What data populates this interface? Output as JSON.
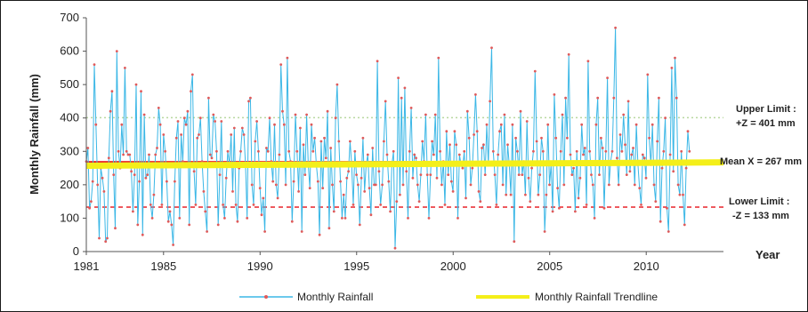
{
  "chart_data": {
    "type": "line",
    "ylabel": "Monthly Rainfall (mm)",
    "xlabel": "Year",
    "ylim": [
      0,
      700
    ],
    "yticks": [
      "0",
      "100",
      "200",
      "300",
      "400",
      "500",
      "600",
      "700"
    ],
    "xlim": [
      1981,
      2014
    ],
    "xticks": [
      "1981",
      "1985",
      "1990",
      "1995",
      "2000",
      "2005",
      "2010"
    ],
    "legend_position": "bottom",
    "series": [
      {
        "name": "Monthly Rainfall",
        "color": "#3bb7e6",
        "marker_color": "#e05a5a",
        "x_start": 1981,
        "step_years": 0.0833,
        "values": [
          270,
          310,
          130,
          150,
          210,
          560,
          380,
          200,
          40,
          250,
          220,
          180,
          30,
          40,
          280,
          420,
          480,
          230,
          70,
          600,
          300,
          250,
          380,
          290,
          550,
          300,
          290,
          290,
          240,
          120,
          230,
          500,
          80,
          210,
          480,
          50,
          410,
          220,
          230,
          290,
          140,
          100,
          170,
          290,
          310,
          430,
          380,
          140,
          350,
          300,
          210,
          90,
          120,
          80,
          20,
          210,
          340,
          390,
          100,
          350,
          270,
          400,
          380,
          420,
          80,
          480,
          530,
          240,
          140,
          340,
          350,
          400,
          270,
          180,
          120,
          60,
          460,
          290,
          280,
          410,
          390,
          300,
          80,
          230,
          390,
          140,
          100,
          220,
          300,
          260,
          350,
          180,
          370,
          140,
          90,
          250,
          300,
          370,
          350,
          260,
          100,
          450,
          460,
          200,
          140,
          330,
          390,
          300,
          190,
          110,
          160,
          60,
          310,
          300,
          400,
          270,
          210,
          380,
          200,
          160,
          290,
          560,
          420,
          380,
          200,
          580,
          300,
          270,
          90,
          210,
          410,
          300,
          180,
          370,
          60,
          320,
          230,
          410,
          260,
          190,
          380,
          300,
          340,
          260,
          210,
          50,
          330,
          190,
          340,
          280,
          420,
          70,
          310,
          200,
          120,
          400,
          500,
          330,
          210,
          100,
          170,
          100,
          220,
          240,
          330,
          260,
          140,
          300,
          230,
          200,
          80,
          220,
          340,
          180,
          260,
          290,
          190,
          110,
          310,
          200,
          200,
          570,
          240,
          140,
          200,
          330,
          450,
          290,
          210,
          120,
          260,
          300,
          10,
          150,
          520,
          170,
          460,
          200,
          490,
          240,
          100,
          300,
          430,
          220,
          290,
          280,
          200,
          150,
          230,
          330,
          270,
          410,
          230,
          100,
          230,
          330,
          290,
          410,
          220,
          580,
          300,
          200,
          270,
          140,
          360,
          230,
          320,
          210,
          180,
          360,
          320,
          100,
          290,
          260,
          250,
          300,
          160,
          420,
          340,
          200,
          250,
          350,
          470,
          360,
          180,
          150,
          310,
          320,
          230,
          380,
          260,
          450,
          610,
          300,
          230,
          140,
          290,
          360,
          380,
          200,
          410,
          170,
          320,
          260,
          170,
          380,
          30,
          340,
          300,
          230,
          420,
          230,
          270,
          170,
          390,
          220,
          150,
          250,
          300,
          540,
          330,
          170,
          230,
          340,
          300,
          60,
          170,
          380,
          200,
          260,
          120,
          470,
          340,
          190,
          130,
          300,
          410,
          200,
          460,
          340,
          590,
          290,
          230,
          250,
          120,
          300,
          160,
          220,
          380,
          290,
          310,
          140,
          570,
          300,
          230,
          200,
          100,
          380,
          460,
          230,
          340,
          310,
          130,
          300,
          520,
          200,
          270,
          300,
          460,
          670,
          280,
          200,
          350,
          300,
          410,
          320,
          230,
          450,
          240,
          290,
          310,
          200,
          380,
          260,
          190,
          140,
          290,
          280,
          220,
          530,
          340,
          260,
          380,
          200,
          150,
          330,
          460,
          90,
          250,
          300,
          400,
          130,
          60,
          290,
          550,
          240,
          580,
          460,
          200,
          170,
          300,
          170,
          80,
          250,
          360,
          300
        ]
      },
      {
        "name": "Monthly Rainfall Trendline",
        "color": "#f4ef19",
        "start": 257,
        "end": 267
      }
    ],
    "reference_lines": [
      {
        "id": "mean",
        "value": 267,
        "color": "#e8232a",
        "style": "solid",
        "label": "Mean X = 267 mm"
      },
      {
        "id": "upper",
        "value": 401,
        "color": "#b8d8a0",
        "style": "dotted",
        "label_line1": "Upper Limit  :",
        "label_line2": "+Z = 401 mm"
      },
      {
        "id": "lower",
        "value": 133,
        "color": "#e8232a",
        "style": "dashed",
        "label_line1": "Lower Limit  :",
        "label_line2": "-Z = 133 mm"
      }
    ]
  }
}
